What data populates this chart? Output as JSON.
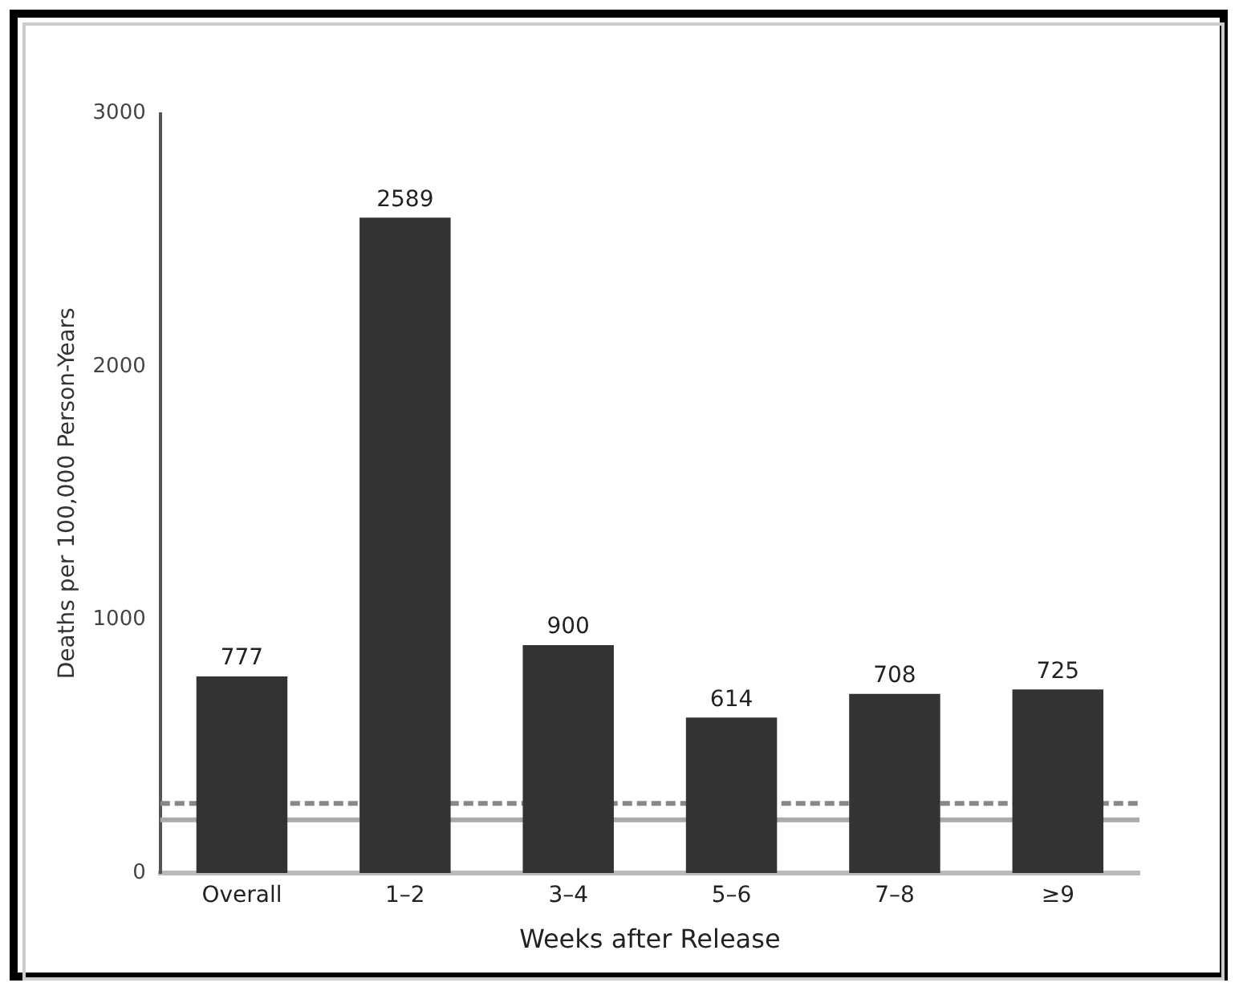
{
  "chart_data": {
    "type": "bar",
    "xlabel": "Weeks after Release",
    "ylabel": "Deaths per 100,000 Person-Years",
    "categories": [
      "Overall",
      "1–2",
      "3–4",
      "5–6",
      "7–8",
      "≥9"
    ],
    "values": [
      777,
      2589,
      900,
      614,
      708,
      725
    ],
    "color": "#333333",
    "ylim": [
      0,
      3000
    ],
    "yticks": [
      0,
      1000,
      2000,
      3000
    ],
    "grid": false,
    "legend": false,
    "data_labels": true,
    "ref_lines": [
      {
        "axis": "y",
        "value": 275,
        "color": "#888888",
        "line_style": "dashed"
      },
      {
        "axis": "y",
        "value": 210,
        "color": "#aaaaaa",
        "line_style": "solid"
      }
    ]
  }
}
